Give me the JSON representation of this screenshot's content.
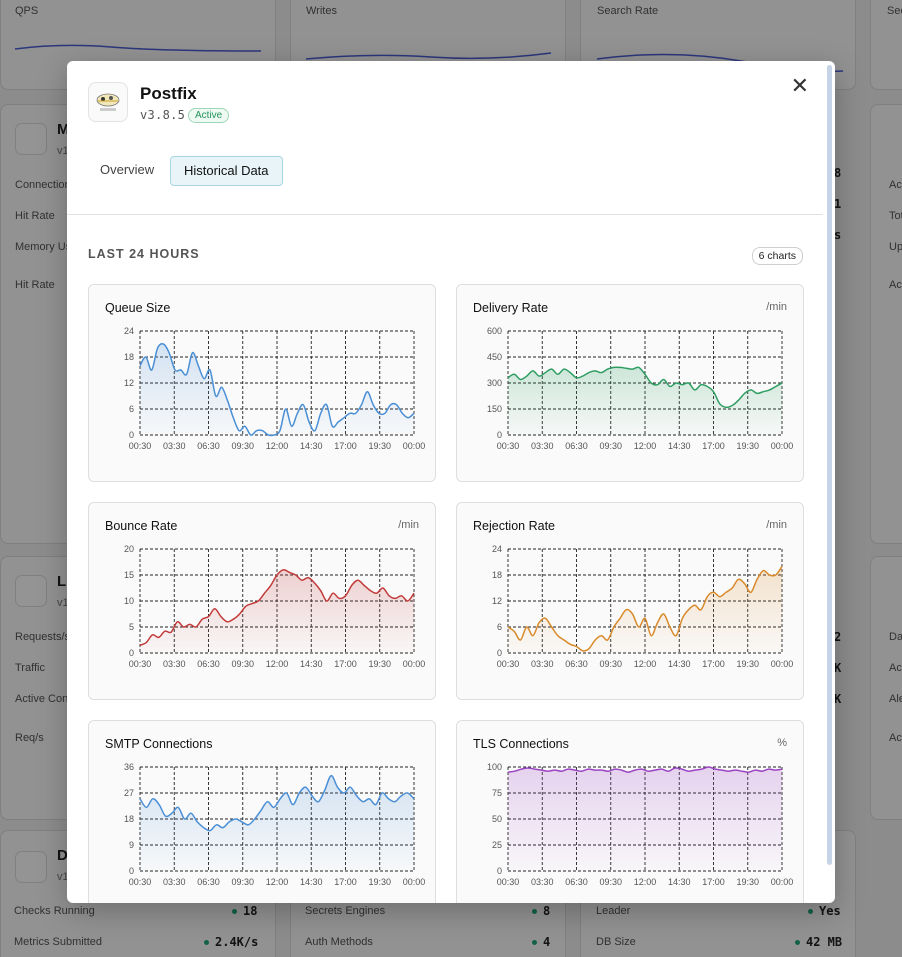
{
  "background": {
    "top_cards": [
      {
        "label": "QPS"
      },
      {
        "label": "Writes"
      },
      {
        "label": "Search Rate"
      },
      {
        "label": "Sec"
      }
    ],
    "left_card_1": {
      "title": "M",
      "sub": "v1",
      "rows": [
        "Connections",
        "Hit Rate",
        "Memory Us",
        "Hit Rate"
      ]
    },
    "left_card_2": {
      "title": "Li",
      "sub": "v1",
      "rows": [
        "Requests/s",
        "Traffic",
        "Active Con",
        "Req/s"
      ]
    },
    "left_card_3": {
      "title": "D",
      "sub": "v1"
    },
    "right_values_1": [
      "8",
      "1",
      "s"
    ],
    "right_values_2": [
      "2",
      "K",
      "K"
    ],
    "right_labels_1": [
      "Act",
      "Tot",
      "Up",
      "Act"
    ],
    "right_labels_2": [
      "Da",
      "Act",
      "Ale",
      "Act"
    ],
    "bottom_rows": [
      {
        "label": "Checks Running",
        "value": "18"
      },
      {
        "label": "Metrics Submitted",
        "value": "2.4K/s"
      },
      {
        "label": "Secrets Engines",
        "value": "8"
      },
      {
        "label": "Auth Methods",
        "value": "4"
      },
      {
        "label": "Leader",
        "value": "Yes"
      },
      {
        "label": "DB Size",
        "value": "42 MB"
      }
    ]
  },
  "modal": {
    "app_name": "Postfix",
    "version": "v3.8.5",
    "status": "Active",
    "icon": "postfix-logo-icon",
    "close_icon": "close-icon",
    "tabs": [
      {
        "label": "Overview",
        "active": false
      },
      {
        "label": "Historical Data",
        "active": true
      }
    ],
    "section_title": "LAST 24 HOURS",
    "chart_count": "6 charts",
    "accent_color": "#a9d5e3"
  },
  "chart_data": [
    {
      "type": "area",
      "title": "Queue Size",
      "unit": "",
      "color": "#4a8fd6",
      "ylim": [
        0,
        24
      ],
      "yticks": [
        0,
        6,
        12,
        18,
        24
      ],
      "xticks": [
        "00:30",
        "03:30",
        "06:30",
        "09:30",
        "12:00",
        "14:30",
        "17:00",
        "19:30",
        "00:00"
      ],
      "values": [
        16,
        18,
        15,
        20,
        21,
        19,
        15,
        15,
        14,
        19,
        16,
        13,
        15,
        9,
        11,
        8,
        4,
        1,
        2,
        0,
        1,
        1,
        0,
        0,
        1,
        6,
        2,
        5,
        7,
        3,
        1,
        5,
        7,
        2,
        3,
        4,
        5,
        5,
        7,
        10,
        7,
        5,
        5,
        7,
        7,
        5,
        4,
        5
      ]
    },
    {
      "type": "area",
      "title": "Delivery Rate",
      "unit": "/min",
      "color": "#2f9e63",
      "ylim": [
        0,
        600
      ],
      "yticks": [
        0,
        150,
        300,
        450,
        600
      ],
      "xticks": [
        "00:30",
        "03:30",
        "06:30",
        "09:30",
        "12:00",
        "14:30",
        "17:00",
        "19:30",
        "00:00"
      ],
      "values": [
        330,
        350,
        320,
        340,
        370,
        340,
        360,
        380,
        350,
        380,
        360,
        330,
        340,
        360,
        370,
        360,
        380,
        390,
        390,
        385,
        380,
        390,
        350,
        300,
        290,
        320,
        280,
        300,
        290,
        300,
        260,
        290,
        280,
        250,
        180,
        160,
        170,
        200,
        240,
        260,
        240,
        250,
        260,
        280,
        300
      ]
    },
    {
      "type": "area",
      "title": "Bounce Rate",
      "unit": "/min",
      "color": "#c23a3a",
      "ylim": [
        0,
        20
      ],
      "yticks": [
        0,
        5,
        10,
        15,
        20
      ],
      "xticks": [
        "00:30",
        "03:30",
        "06:30",
        "09:30",
        "12:00",
        "14:30",
        "17:00",
        "19:30",
        "00:00"
      ],
      "values": [
        1.5,
        2,
        3.5,
        3,
        4.2,
        4,
        6,
        5,
        5.5,
        5,
        6.5,
        7,
        8.5,
        7,
        6,
        6.5,
        7.5,
        9,
        9.5,
        10,
        11.5,
        13,
        15,
        16,
        15.5,
        15,
        14,
        14.5,
        13.5,
        12,
        10,
        11.5,
        10.5,
        11,
        13,
        14,
        13,
        12,
        11.5,
        12.5,
        11,
        10.5,
        11,
        10,
        11.5
      ]
    },
    {
      "type": "area",
      "title": "Rejection Rate",
      "unit": "/min",
      "color": "#d98a2b",
      "ylim": [
        0,
        24
      ],
      "yticks": [
        0,
        6,
        12,
        18,
        24
      ],
      "xticks": [
        "00:30",
        "03:30",
        "06:30",
        "09:30",
        "12:00",
        "14:30",
        "17:00",
        "19:30",
        "00:00"
      ],
      "values": [
        6,
        5,
        3,
        6,
        4,
        7,
        8,
        6,
        4,
        3,
        2,
        1.5,
        0.5,
        1,
        3,
        4,
        3,
        6,
        8,
        10,
        9,
        6,
        8,
        4,
        7,
        9,
        6,
        4,
        8,
        10,
        11,
        10,
        13,
        14,
        13,
        14,
        15,
        17,
        16,
        14,
        17,
        19,
        18,
        18,
        20
      ]
    },
    {
      "type": "area",
      "title": "SMTP Connections",
      "unit": "",
      "color": "#4a8fd6",
      "ylim": [
        0,
        36
      ],
      "yticks": [
        0,
        9,
        18,
        27,
        36
      ],
      "xticks": [
        "00:30",
        "03:30",
        "06:30",
        "09:30",
        "12:00",
        "14:30",
        "17:00",
        "19:30",
        "00:00"
      ],
      "values": [
        25,
        22,
        25,
        23,
        19,
        20,
        22,
        18,
        20,
        17,
        15,
        14,
        16,
        15,
        17,
        18,
        17,
        16,
        18,
        21,
        24,
        22,
        25,
        27,
        23,
        27,
        29,
        26,
        24,
        28,
        33,
        29,
        27,
        29,
        26,
        24,
        25,
        23,
        27,
        25,
        24,
        26,
        27,
        25
      ]
    },
    {
      "type": "area",
      "title": "TLS Connections",
      "unit": "%",
      "color": "#9b44c2",
      "ylim": [
        0,
        100
      ],
      "yticks": [
        0,
        25,
        50,
        75,
        100
      ],
      "xticks": [
        "00:30",
        "03:30",
        "06:30",
        "09:30",
        "12:00",
        "14:30",
        "17:00",
        "19:30",
        "00:00"
      ],
      "values": [
        95,
        96,
        98,
        99,
        98,
        97,
        96,
        97,
        96,
        98,
        97,
        96,
        98,
        97,
        97,
        96,
        98,
        97,
        95,
        97,
        98,
        96,
        97,
        98,
        96,
        99,
        98,
        96,
        97,
        98,
        100,
        98,
        97,
        96,
        97,
        96,
        95,
        97,
        96,
        98,
        97,
        98
      ]
    }
  ]
}
